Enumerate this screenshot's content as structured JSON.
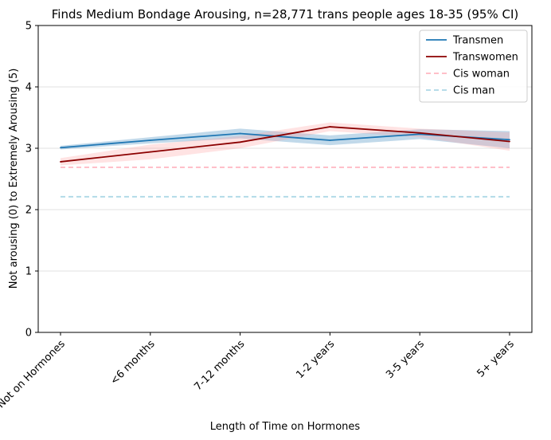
{
  "chart_data": {
    "type": "line",
    "title": "Finds Medium Bondage Arousing, n=28,771 trans people ages 18-35 (95% CI)",
    "xlabel": "Length of Time on Hormones",
    "ylabel": "Not arousing (0) to Extremely Arousing (5)",
    "categories": [
      "Not on Hormones",
      "<6 months",
      "7-12 months",
      "1-2 years",
      "3-5 years",
      "5+ years"
    ],
    "ylim": [
      0,
      5
    ],
    "yticks": [
      0,
      1,
      2,
      3,
      4,
      5
    ],
    "grid": "horizontal",
    "legend_position": "top-right",
    "series": [
      {
        "name": "Transmen",
        "color": "#1f77b4",
        "band_color": "#1f77b4",
        "style": "solid",
        "values": [
          3.01,
          3.13,
          3.24,
          3.13,
          3.23,
          3.14
        ],
        "ci_low": [
          2.98,
          3.08,
          3.16,
          3.05,
          3.15,
          3.0
        ],
        "ci_high": [
          3.04,
          3.18,
          3.32,
          3.21,
          3.31,
          3.28
        ]
      },
      {
        "name": "Transwomen",
        "color": "#8b0000",
        "band_color": "#ff9999",
        "style": "solid",
        "values": [
          2.78,
          2.94,
          3.1,
          3.35,
          3.25,
          3.11
        ],
        "ci_low": [
          2.72,
          2.82,
          3.0,
          3.28,
          3.18,
          2.96
        ],
        "ci_high": [
          2.84,
          3.06,
          3.2,
          3.42,
          3.32,
          3.26
        ]
      },
      {
        "name": "Cis woman",
        "color": "#ffb6c1",
        "style": "dashed",
        "values": [
          2.69,
          2.69,
          2.69,
          2.69,
          2.69,
          2.69
        ]
      },
      {
        "name": "Cis man",
        "color": "#add8e6",
        "style": "dashed",
        "values": [
          2.21,
          2.21,
          2.21,
          2.21,
          2.21,
          2.21
        ]
      }
    ]
  }
}
